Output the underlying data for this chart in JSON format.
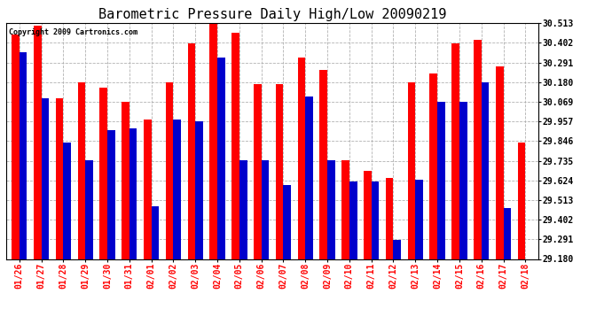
{
  "title": "Barometric Pressure Daily High/Low 20090219",
  "copyright": "Copyright 2009 Cartronics.com",
  "dates": [
    "01/26",
    "01/27",
    "01/28",
    "01/29",
    "01/30",
    "01/31",
    "02/01",
    "02/02",
    "02/03",
    "02/04",
    "02/05",
    "02/06",
    "02/07",
    "02/08",
    "02/09",
    "02/10",
    "02/11",
    "02/12",
    "02/13",
    "02/14",
    "02/15",
    "02/16",
    "02/17",
    "02/18"
  ],
  "highs": [
    30.45,
    30.5,
    30.09,
    30.18,
    30.15,
    30.07,
    29.97,
    30.18,
    30.4,
    30.51,
    30.46,
    30.17,
    30.17,
    30.32,
    30.25,
    29.74,
    29.68,
    29.64,
    30.18,
    30.23,
    30.4,
    30.42,
    30.27,
    29.84
  ],
  "lows": [
    30.35,
    30.09,
    29.84,
    29.74,
    29.91,
    29.92,
    29.48,
    29.97,
    29.96,
    30.32,
    29.74,
    29.74,
    29.6,
    30.1,
    29.74,
    29.62,
    29.62,
    29.29,
    29.63,
    30.07,
    30.07,
    30.18,
    29.47,
    29.18
  ],
  "high_color": "#FF0000",
  "low_color": "#0000CC",
  "background_color": "#FFFFFF",
  "grid_color": "#AAAAAA",
  "yticks": [
    29.18,
    29.291,
    29.402,
    29.513,
    29.624,
    29.735,
    29.846,
    29.957,
    30.069,
    30.18,
    30.291,
    30.402,
    30.513
  ],
  "ymin": 29.18,
  "ymax": 30.513,
  "title_fontsize": 11,
  "tick_fontsize": 7,
  "copyright_fontsize": 6,
  "bar_width": 0.35
}
